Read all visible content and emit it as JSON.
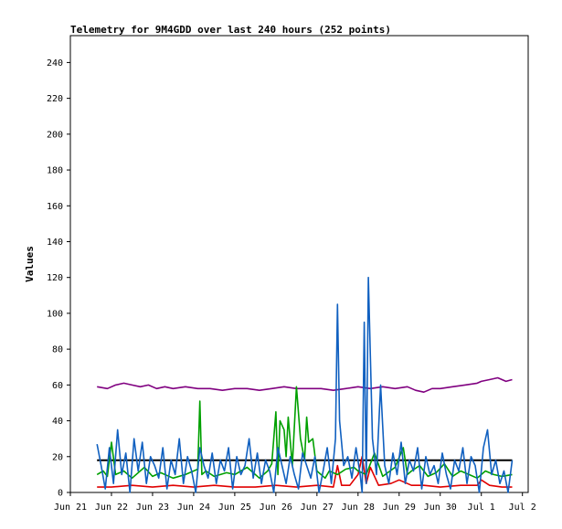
{
  "chart_data": {
    "type": "line",
    "title": "Telemetry for 9M4GDD over last 240 hours (252 points)",
    "xlabel": "",
    "ylabel": "Values",
    "ylim": [
      0,
      255
    ],
    "y_ticks": [
      0,
      20,
      40,
      60,
      80,
      100,
      120,
      140,
      160,
      180,
      200,
      220,
      240
    ],
    "x_range": [
      21.0,
      32.14
    ],
    "x_ticks": [
      {
        "x": 21,
        "label": "Jun 21"
      },
      {
        "x": 22,
        "label": "Jun 22"
      },
      {
        "x": 23,
        "label": "Jun 23"
      },
      {
        "x": 24,
        "label": "Jun 24"
      },
      {
        "x": 25,
        "label": "Jun 25"
      },
      {
        "x": 26,
        "label": "Jun 26"
      },
      {
        "x": 27,
        "label": "Jun 27"
      },
      {
        "x": 28,
        "label": "Jun 28"
      },
      {
        "x": 29,
        "label": "Jun 29"
      },
      {
        "x": 30,
        "label": "Jun 30"
      },
      {
        "x": 31,
        "label": "Jul 1"
      },
      {
        "x": 32,
        "label": "Jul 2"
      }
    ],
    "grid": false,
    "legend": "none",
    "series": [
      {
        "color": "#800080",
        "x": [
          21.65,
          21.9,
          22.1,
          22.3,
          22.5,
          22.7,
          22.9,
          23.1,
          23.3,
          23.5,
          23.8,
          24.1,
          24.4,
          24.7,
          25.0,
          25.3,
          25.6,
          25.9,
          26.2,
          26.5,
          26.8,
          27.1,
          27.4,
          27.7,
          28.0,
          28.3,
          28.6,
          28.9,
          29.2,
          29.4,
          29.6,
          29.8,
          30.0,
          30.3,
          30.6,
          30.9,
          31.0,
          31.2,
          31.4,
          31.6,
          31.75
        ],
        "y": [
          59,
          58,
          60,
          61,
          60,
          59,
          60,
          58,
          59,
          58,
          59,
          58,
          58,
          57,
          58,
          58,
          57,
          58,
          59,
          58,
          58,
          58,
          57,
          58,
          59,
          58,
          59,
          58,
          59,
          57,
          56,
          58,
          58,
          59,
          60,
          61,
          62,
          63,
          64,
          62,
          63
        ]
      },
      {
        "color": "#000000",
        "x": [
          21.65,
          31.75
        ],
        "y": [
          18,
          18
        ]
      },
      {
        "color": "#e00000",
        "x": [
          21.65,
          22.0,
          22.5,
          23.0,
          23.5,
          24.0,
          24.5,
          25.0,
          25.5,
          26.0,
          26.5,
          27.0,
          27.4,
          27.5,
          27.6,
          27.8,
          28.0,
          28.1,
          28.2,
          28.3,
          28.5,
          28.8,
          29.0,
          29.3,
          29.6,
          30.0,
          30.5,
          30.9,
          31.0,
          31.2,
          31.5,
          31.75
        ],
        "y": [
          3,
          3,
          4,
          3,
          4,
          3,
          4,
          3,
          3,
          4,
          3,
          4,
          3,
          15,
          4,
          4,
          10,
          20,
          5,
          14,
          4,
          5,
          7,
          4,
          4,
          3,
          4,
          4,
          7,
          4,
          3,
          3
        ]
      },
      {
        "color": "#00a000",
        "x": [
          21.65,
          21.8,
          21.9,
          22.0,
          22.1,
          22.3,
          22.5,
          22.8,
          23.0,
          23.2,
          23.5,
          23.8,
          24.0,
          24.1,
          24.15,
          24.2,
          24.3,
          24.5,
          24.8,
          25.0,
          25.3,
          25.6,
          25.8,
          25.9,
          26.0,
          26.05,
          26.1,
          26.2,
          26.25,
          26.3,
          26.4,
          26.5,
          26.6,
          26.7,
          26.75,
          26.8,
          26.9,
          27.0,
          27.1,
          27.2,
          27.3,
          27.5,
          27.7,
          27.9,
          28.0,
          28.2,
          28.4,
          28.6,
          28.9,
          29.1,
          29.2,
          29.3,
          29.5,
          29.7,
          29.9,
          30.1,
          30.3,
          30.5,
          30.7,
          30.9,
          31.1,
          31.3,
          31.5,
          31.75
        ],
        "y": [
          10,
          12,
          9,
          28,
          10,
          12,
          8,
          14,
          9,
          11,
          8,
          10,
          12,
          13,
          51,
          10,
          12,
          9,
          11,
          10,
          14,
          8,
          12,
          16,
          45,
          10,
          40,
          35,
          20,
          42,
          15,
          59,
          30,
          18,
          42,
          28,
          30,
          12,
          10,
          8,
          12,
          10,
          13,
          14,
          12,
          10,
          22,
          9,
          14,
          25,
          10,
          12,
          15,
          9,
          11,
          16,
          9,
          12,
          10,
          8,
          12,
          10,
          9,
          10
        ]
      },
      {
        "color": "#1060c0",
        "x": [
          21.65,
          21.75,
          21.85,
          21.95,
          22.05,
          22.15,
          22.25,
          22.35,
          22.45,
          22.55,
          22.65,
          22.75,
          22.85,
          22.95,
          23.05,
          23.15,
          23.25,
          23.35,
          23.45,
          23.55,
          23.65,
          23.75,
          23.85,
          23.95,
          24.05,
          24.15,
          24.25,
          24.35,
          24.45,
          24.55,
          24.65,
          24.75,
          24.85,
          24.95,
          25.05,
          25.15,
          25.25,
          25.35,
          25.45,
          25.55,
          25.65,
          25.75,
          25.85,
          25.95,
          26.05,
          26.15,
          26.25,
          26.35,
          26.45,
          26.55,
          26.65,
          26.75,
          26.85,
          26.95,
          27.05,
          27.15,
          27.25,
          27.35,
          27.45,
          27.5,
          27.55,
          27.65,
          27.75,
          27.85,
          27.95,
          28.05,
          28.1,
          28.15,
          28.2,
          28.25,
          28.35,
          28.45,
          28.55,
          28.65,
          28.75,
          28.85,
          28.95,
          29.05,
          29.15,
          29.25,
          29.35,
          29.45,
          29.55,
          29.65,
          29.75,
          29.85,
          29.95,
          30.05,
          30.15,
          30.25,
          30.35,
          30.45,
          30.55,
          30.65,
          30.75,
          30.85,
          30.95,
          31.05,
          31.15,
          31.25,
          31.35,
          31.45,
          31.55,
          31.65,
          31.75
        ],
        "y": [
          27,
          15,
          2,
          25,
          5,
          35,
          10,
          22,
          0,
          30,
          12,
          28,
          5,
          20,
          15,
          8,
          25,
          2,
          18,
          10,
          30,
          5,
          20,
          12,
          0,
          25,
          15,
          8,
          22,
          5,
          18,
          12,
          25,
          2,
          20,
          10,
          15,
          30,
          8,
          22,
          5,
          18,
          12,
          0,
          25,
          15,
          5,
          20,
          10,
          2,
          22,
          15,
          8,
          20,
          0,
          12,
          25,
          5,
          30,
          105,
          40,
          15,
          20,
          8,
          25,
          10,
          0,
          95,
          5,
          120,
          30,
          10,
          60,
          15,
          5,
          22,
          10,
          28,
          5,
          18,
          12,
          25,
          2,
          20,
          10,
          15,
          5,
          22,
          10,
          2,
          18,
          12,
          25,
          5,
          20,
          15,
          0,
          25,
          35,
          10,
          18,
          5,
          12,
          0,
          18
        ]
      }
    ]
  }
}
